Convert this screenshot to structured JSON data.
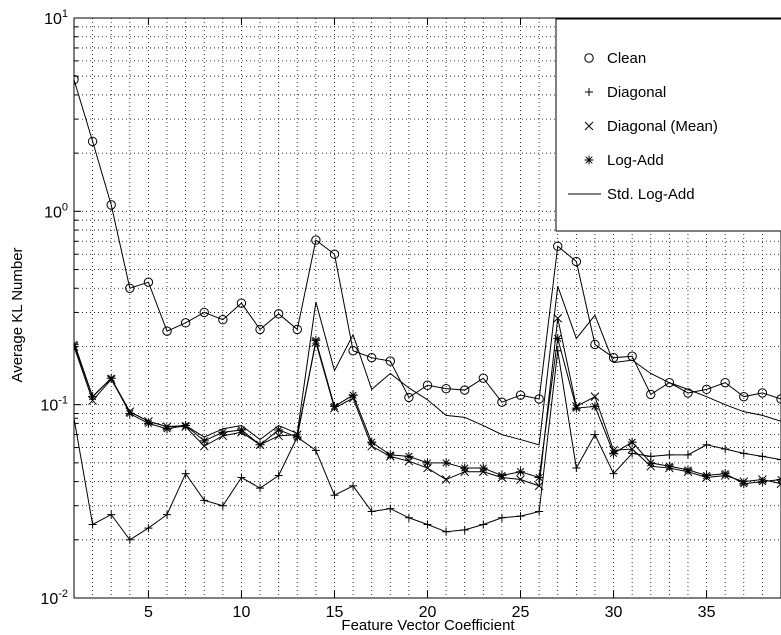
{
  "chart_data": {
    "type": "line",
    "xlabel": "Feature Vector Coefficient",
    "ylabel": "Average KL Number",
    "yscale": "log",
    "xlim": [
      1,
      39
    ],
    "ylim": [
      0.01,
      10
    ],
    "grid": true,
    "legend_position": "top-right",
    "x_ticks": [
      5,
      10,
      15,
      20,
      25,
      30,
      35
    ],
    "x_tick_labels": [
      "5",
      "10",
      "15",
      "20",
      "25",
      "30",
      "35"
    ],
    "y_ticks": [
      {
        "value": 10,
        "base": "10",
        "exp": "1"
      },
      {
        "value": 1,
        "base": "10",
        "exp": "0"
      },
      {
        "value": 0.1,
        "base": "10",
        "exp": "-1"
      },
      {
        "value": 0.01,
        "base": "10",
        "exp": "-2"
      }
    ],
    "x": [
      1,
      2,
      3,
      4,
      5,
      6,
      7,
      8,
      9,
      10,
      11,
      12,
      13,
      14,
      15,
      16,
      17,
      18,
      19,
      20,
      21,
      22,
      23,
      24,
      25,
      26,
      27,
      28,
      29,
      30,
      31,
      32,
      33,
      34,
      35,
      36,
      37,
      38,
      39
    ],
    "series": [
      {
        "name": "Clean",
        "marker": "circle",
        "line": true,
        "values": [
          4.8,
          2.3,
          1.08,
          0.4,
          0.43,
          0.24,
          0.265,
          0.3,
          0.275,
          0.335,
          0.245,
          0.295,
          0.245,
          0.71,
          0.6,
          0.19,
          0.175,
          0.168,
          0.109,
          0.126,
          0.121,
          0.119,
          0.137,
          0.103,
          0.112,
          0.107,
          0.66,
          0.55,
          0.205,
          0.175,
          0.178,
          0.113,
          0.13,
          0.115,
          0.12,
          0.13,
          0.11,
          0.115,
          0.107
        ]
      },
      {
        "name": "Diagonal",
        "marker": "plus",
        "line": true,
        "values": [
          0.085,
          0.024,
          0.027,
          0.02,
          0.023,
          0.027,
          0.044,
          0.032,
          0.03,
          0.042,
          0.037,
          0.043,
          0.068,
          0.058,
          0.034,
          0.038,
          0.028,
          0.029,
          0.026,
          0.024,
          0.022,
          0.0225,
          0.024,
          0.026,
          0.0265,
          0.028,
          0.19,
          0.047,
          0.07,
          0.044,
          0.056,
          0.054,
          0.055,
          0.055,
          0.062,
          0.059,
          0.056,
          0.054,
          0.052
        ]
      },
      {
        "name": "Diagonal (Mean)",
        "marker": "x",
        "line": true,
        "values": [
          0.2,
          0.105,
          0.135,
          0.092,
          0.082,
          0.077,
          0.077,
          0.061,
          0.069,
          0.072,
          0.062,
          0.069,
          0.07,
          0.21,
          0.096,
          0.108,
          0.061,
          0.054,
          0.051,
          0.047,
          0.041,
          0.045,
          0.045,
          0.042,
          0.041,
          0.038,
          0.28,
          0.098,
          0.11,
          0.058,
          0.059,
          0.048,
          0.047,
          0.045,
          0.042,
          0.043,
          0.04,
          0.041,
          0.039
        ]
      },
      {
        "name": "Log-Add",
        "marker": "asterisk",
        "line": true,
        "values": [
          0.205,
          0.11,
          0.137,
          0.09,
          0.08,
          0.075,
          0.078,
          0.065,
          0.072,
          0.074,
          0.062,
          0.074,
          0.068,
          0.215,
          0.098,
          0.112,
          0.064,
          0.055,
          0.054,
          0.05,
          0.05,
          0.047,
          0.047,
          0.043,
          0.045,
          0.042,
          0.22,
          0.096,
          0.098,
          0.056,
          0.064,
          0.05,
          0.048,
          0.046,
          0.043,
          0.044,
          0.039,
          0.04,
          0.041
        ]
      },
      {
        "name": "Std. Log-Add",
        "marker": "none",
        "line": true,
        "values": [
          0.21,
          0.11,
          0.137,
          0.092,
          0.082,
          0.077,
          0.078,
          0.068,
          0.075,
          0.078,
          0.066,
          0.078,
          0.071,
          0.34,
          0.15,
          0.23,
          0.12,
          0.145,
          0.122,
          0.106,
          0.088,
          0.086,
          0.078,
          0.07,
          0.066,
          0.062,
          0.41,
          0.22,
          0.29,
          0.165,
          0.17,
          0.145,
          0.13,
          0.12,
          0.11,
          0.1,
          0.092,
          0.088,
          0.082
        ]
      }
    ]
  }
}
